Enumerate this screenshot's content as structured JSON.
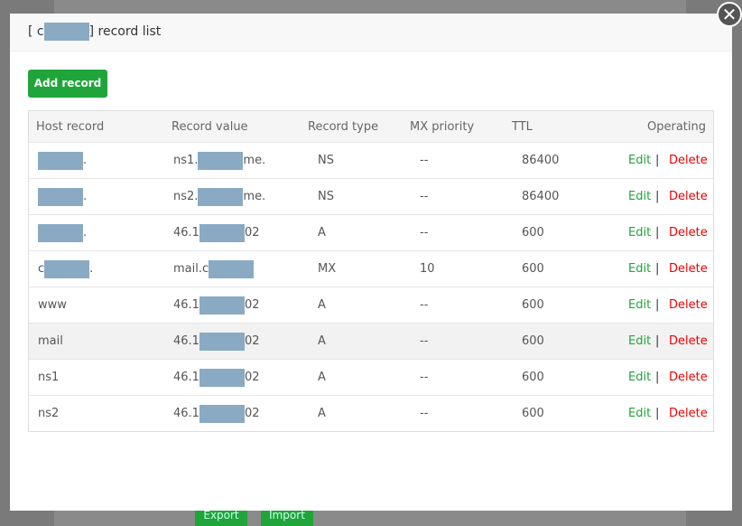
{
  "background": {
    "export": "Export",
    "import": "Import"
  },
  "dialog": {
    "title": [
      "[ c",
      "] record list"
    ],
    "add_button": "Add record"
  },
  "table": {
    "headers": [
      "Host record",
      "Record value",
      "Record type",
      "MX priority",
      "TTL",
      "Operating"
    ],
    "rows": [
      [
        [
          "."
        ],
        [
          "ns1.",
          "me."
        ],
        "NS",
        "--",
        "86400"
      ],
      [
        [
          "."
        ],
        [
          "ns2.",
          "me."
        ],
        "NS",
        "--",
        "86400"
      ],
      [
        [
          "."
        ],
        [
          "46.1",
          "02"
        ],
        "A",
        "--",
        "600"
      ],
      [
        [
          "c",
          "."
        ],
        [
          "mail.c"
        ],
        "MX",
        "10",
        "600"
      ],
      [
        [
          "www"
        ],
        [
          "46.1",
          "02"
        ],
        "A",
        "--",
        "600"
      ],
      [
        [
          "mail"
        ],
        [
          "46.1",
          "02"
        ],
        "A",
        "--",
        "600"
      ],
      [
        [
          "ns1"
        ],
        [
          "46.1",
          "02"
        ],
        "A",
        "--",
        "600"
      ],
      [
        [
          "ns2"
        ],
        [
          "46.1",
          "02"
        ],
        "A",
        "--",
        "600"
      ]
    ],
    "actions": {
      "edit": "Edit",
      "separator": "|",
      "delete": "Delete"
    }
  }
}
